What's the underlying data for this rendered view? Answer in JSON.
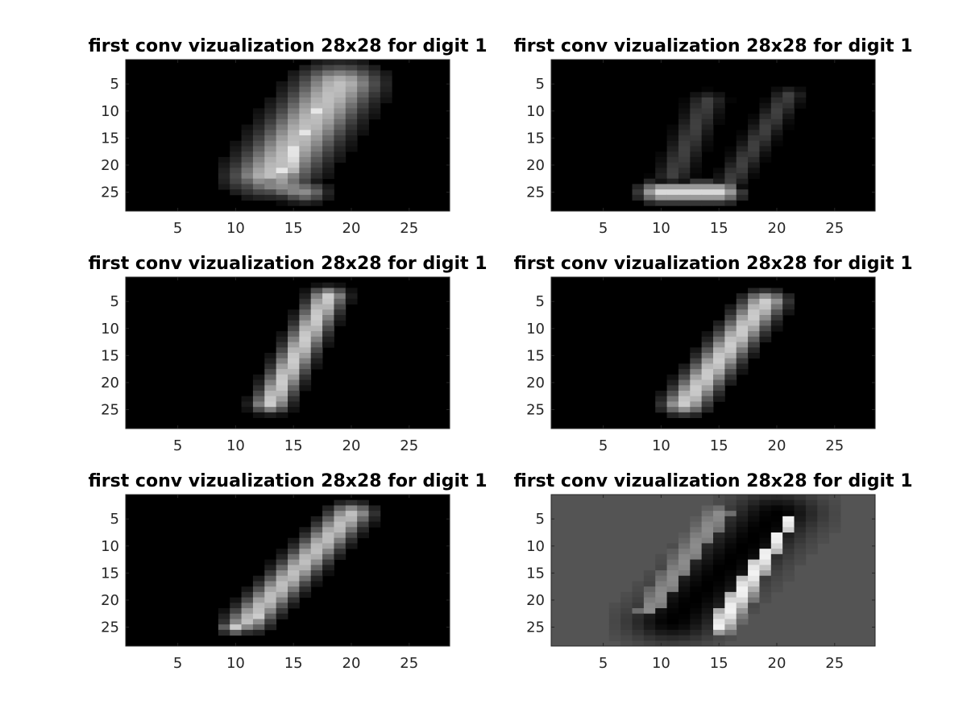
{
  "figure": {
    "background": "#ffffff"
  },
  "chart_data": [
    {
      "type": "heatmap",
      "title": "first conv vizualization 28x28 for digit 1",
      "colormap": "gray",
      "background_value": 0.0,
      "xlim": [
        0.5,
        28.5
      ],
      "ylim": [
        0.5,
        28.5
      ],
      "y_reversed": true,
      "xticks": [
        5,
        10,
        15,
        20,
        25
      ],
      "yticks": [
        5,
        10,
        15,
        20,
        25
      ],
      "xtick_labels": [
        "5",
        "10",
        "15",
        "20",
        "25"
      ],
      "ytick_labels": [
        "5",
        "10",
        "15",
        "20",
        "25"
      ],
      "strokes": [
        {
          "from": [
            19,
            5
          ],
          "to": [
            13,
            22
          ],
          "intensity": 0.75,
          "width": 2.2
        },
        {
          "from": [
            17,
            10
          ],
          "to": [
            14,
            21
          ],
          "intensity": 0.9,
          "width": 1.4
        },
        {
          "from": [
            12,
            23
          ],
          "to": [
            16,
            25
          ],
          "intensity": 0.55,
          "width": 1.2
        }
      ]
    },
    {
      "type": "heatmap",
      "title": "first conv vizualization 28x28 for digit 1",
      "colormap": "gray",
      "background_value": 0.0,
      "xlim": [
        0.5,
        28.5
      ],
      "ylim": [
        0.5,
        28.5
      ],
      "y_reversed": true,
      "xticks": [
        5,
        10,
        15,
        20,
        25
      ],
      "yticks": [
        5,
        10,
        15,
        20,
        25
      ],
      "xtick_labels": [
        "5",
        "10",
        "15",
        "20",
        "25"
      ],
      "ytick_labels": [
        "5",
        "10",
        "15",
        "20",
        "25"
      ],
      "strokes": [
        {
          "from": [
            10,
            25
          ],
          "to": [
            15,
            25
          ],
          "intensity": 0.85,
          "width": 1.2
        },
        {
          "from": [
            14,
            8
          ],
          "to": [
            11,
            22
          ],
          "intensity": 0.25,
          "width": 0.9
        },
        {
          "from": [
            21,
            7
          ],
          "to": [
            16,
            23
          ],
          "intensity": 0.25,
          "width": 0.8
        }
      ]
    },
    {
      "type": "heatmap",
      "title": "first conv vizualization 28x28 for digit 1",
      "colormap": "gray",
      "background_value": 0.0,
      "xlim": [
        0.5,
        28.5
      ],
      "ylim": [
        0.5,
        28.5
      ],
      "y_reversed": true,
      "xticks": [
        5,
        10,
        15,
        20,
        25
      ],
      "yticks": [
        5,
        10,
        15,
        20,
        25
      ],
      "xtick_labels": [
        "5",
        "10",
        "15",
        "20",
        "25"
      ],
      "ytick_labels": [
        "5",
        "10",
        "15",
        "20",
        "25"
      ],
      "strokes": [
        {
          "from": [
            18,
            4
          ],
          "to": [
            13,
            24
          ],
          "intensity": 0.8,
          "width": 1.0
        }
      ]
    },
    {
      "type": "heatmap",
      "title": "first conv vizualization 28x28 for digit 1",
      "colormap": "gray",
      "background_value": 0.0,
      "xlim": [
        0.5,
        28.5
      ],
      "ylim": [
        0.5,
        28.5
      ],
      "y_reversed": true,
      "xticks": [
        5,
        10,
        15,
        20,
        25
      ],
      "yticks": [
        5,
        10,
        15,
        20,
        25
      ],
      "xtick_labels": [
        "5",
        "10",
        "15",
        "20",
        "25"
      ],
      "ytick_labels": [
        "5",
        "10",
        "15",
        "20",
        "25"
      ],
      "strokes": [
        {
          "from": [
            19,
            5
          ],
          "to": [
            12,
            24
          ],
          "intensity": 0.8,
          "width": 1.2
        }
      ]
    },
    {
      "type": "heatmap",
      "title": "first conv vizualization 28x28 for digit 1",
      "colormap": "gray",
      "background_value": 0.0,
      "xlim": [
        0.5,
        28.5
      ],
      "ylim": [
        0.5,
        28.5
      ],
      "y_reversed": true,
      "xticks": [
        5,
        10,
        15,
        20,
        25
      ],
      "yticks": [
        5,
        10,
        15,
        20,
        25
      ],
      "xtick_labels": [
        "5",
        "10",
        "15",
        "20",
        "25"
      ],
      "ytick_labels": [
        "5",
        "10",
        "15",
        "20",
        "25"
      ],
      "strokes": [
        {
          "from": [
            20,
            4
          ],
          "to": [
            11,
            24
          ],
          "intensity": 0.75,
          "width": 1.2
        },
        {
          "from": [
            12,
            23
          ],
          "to": [
            10,
            25
          ],
          "intensity": 0.8,
          "width": 0.8
        }
      ]
    },
    {
      "type": "heatmap",
      "title": "first conv vizualization 28x28 for digit 1",
      "colormap": "gray",
      "background_value": 0.33,
      "xlim": [
        0.5,
        28.5
      ],
      "ylim": [
        0.5,
        28.5
      ],
      "y_reversed": true,
      "xticks": [
        5,
        10,
        15,
        20,
        25
      ],
      "yticks": [
        5,
        10,
        15,
        20,
        25
      ],
      "xtick_labels": [
        "5",
        "10",
        "15",
        "20",
        "25"
      ],
      "ytick_labels": [
        "5",
        "10",
        "15",
        "20",
        "25"
      ],
      "strokes": [
        {
          "from": [
            20,
            4
          ],
          "to": [
            11,
            24
          ],
          "intensity": 0.0,
          "width": 2.6
        },
        {
          "from": [
            21,
            5
          ],
          "to": [
            15,
            25
          ],
          "intensity": 0.95,
          "width": 0.8
        },
        {
          "from": [
            15,
            4
          ],
          "to": [
            9,
            22
          ],
          "intensity": 0.55,
          "width": 0.8
        }
      ]
    }
  ]
}
